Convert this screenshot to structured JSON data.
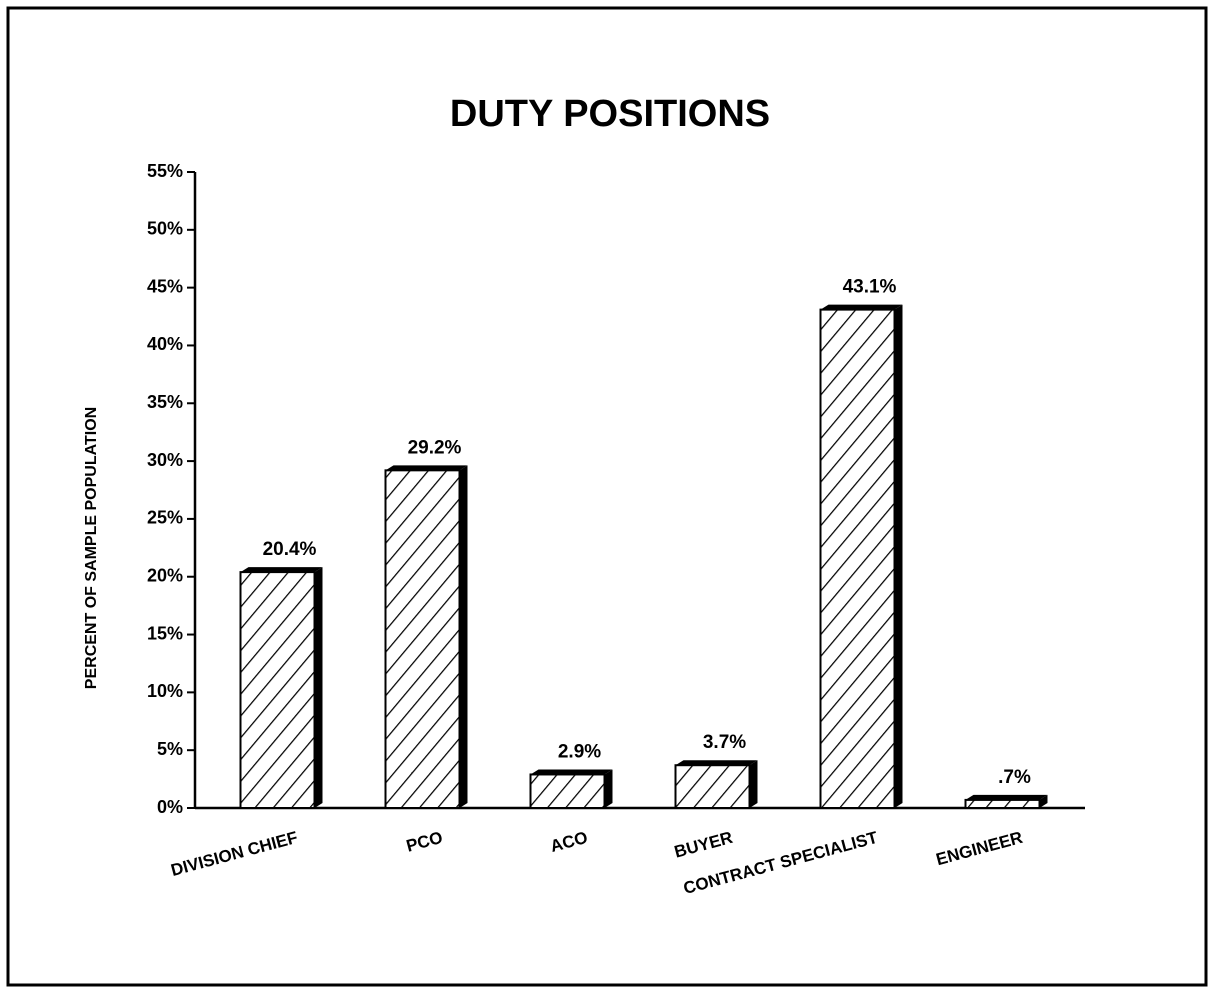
{
  "chart_data": {
    "type": "bar",
    "title": "DUTY POSITIONS",
    "y_label": "PERCENT OF SAMPLE POPULATION",
    "categories": [
      "DIVISION CHIEF",
      "PCO",
      "ACO",
      "BUYER",
      "CONTRACT SPECIALIST",
      "ENGINEER"
    ],
    "values": [
      20.4,
      29.2,
      2.9,
      3.7,
      43.1,
      0.7
    ],
    "value_labels": [
      "20.4%",
      "29.2%",
      "2.9%",
      "3.7%",
      "43.1%",
      ".7%"
    ],
    "color": "#000000",
    "ylim": [
      0,
      55
    ],
    "yticks": [
      {
        "value": 0,
        "label": "0%"
      },
      {
        "value": 5,
        "label": "5%"
      },
      {
        "value": 10,
        "label": "10%"
      },
      {
        "value": 15,
        "label": "15%"
      },
      {
        "value": 20,
        "label": "20%"
      },
      {
        "value": 25,
        "label": "25%"
      },
      {
        "value": 30,
        "label": "30%"
      },
      {
        "value": 35,
        "label": "35%"
      },
      {
        "value": 40,
        "label": "40%"
      },
      {
        "value": 45,
        "label": "45%"
      },
      {
        "value": 50,
        "label": "50%"
      },
      {
        "value": 55,
        "label": "55%"
      }
    ],
    "grid": false
  }
}
